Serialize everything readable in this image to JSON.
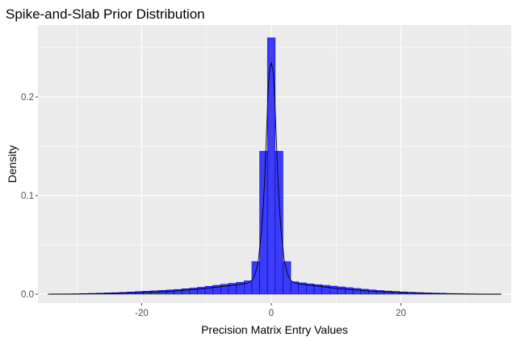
{
  "chart_data": {
    "type": "bar",
    "subtype": "histogram-with-density-line",
    "title": "Spike-and-Slab Prior Distribution",
    "xlabel": "Precision Matrix Entry Values",
    "ylabel": "Density",
    "xlim": [
      -36,
      37
    ],
    "ylim": [
      -0.009,
      0.273
    ],
    "x_ticks": [
      -20,
      0,
      20
    ],
    "x_tick_labels": [
      "-20",
      "0",
      "20"
    ],
    "y_ticks": [
      0.0,
      0.1,
      0.2
    ],
    "y_tick_labels": [
      "0.0",
      "0.1",
      "0.2"
    ],
    "grid": true,
    "legend": "none",
    "bin_width": 1.2,
    "bins": [
      {
        "x": -33.6,
        "y": 0.0003
      },
      {
        "x": -32.4,
        "y": 0.0003
      },
      {
        "x": -31.2,
        "y": 0.0003
      },
      {
        "x": -30.0,
        "y": 0.0004
      },
      {
        "x": -28.8,
        "y": 0.0006
      },
      {
        "x": -27.6,
        "y": 0.0008
      },
      {
        "x": -26.4,
        "y": 0.001
      },
      {
        "x": -25.2,
        "y": 0.0013
      },
      {
        "x": -24.0,
        "y": 0.0015
      },
      {
        "x": -22.8,
        "y": 0.0018
      },
      {
        "x": -21.6,
        "y": 0.0022
      },
      {
        "x": -20.4,
        "y": 0.0026
      },
      {
        "x": -19.2,
        "y": 0.003
      },
      {
        "x": -18.0,
        "y": 0.0034
      },
      {
        "x": -16.8,
        "y": 0.0038
      },
      {
        "x": -15.6,
        "y": 0.0043
      },
      {
        "x": -14.4,
        "y": 0.0048
      },
      {
        "x": -13.2,
        "y": 0.0055
      },
      {
        "x": -12.0,
        "y": 0.0062
      },
      {
        "x": -10.8,
        "y": 0.007
      },
      {
        "x": -9.6,
        "y": 0.008
      },
      {
        "x": -8.4,
        "y": 0.009
      },
      {
        "x": -7.2,
        "y": 0.01
      },
      {
        "x": -6.0,
        "y": 0.011
      },
      {
        "x": -4.8,
        "y": 0.012
      },
      {
        "x": -3.6,
        "y": 0.0135
      },
      {
        "x": -2.4,
        "y": 0.033
      },
      {
        "x": -1.2,
        "y": 0.145
      },
      {
        "x": 0.0,
        "y": 0.26
      },
      {
        "x": 1.2,
        "y": 0.145
      },
      {
        "x": 2.4,
        "y": 0.033
      },
      {
        "x": 3.6,
        "y": 0.0125
      },
      {
        "x": 4.8,
        "y": 0.0115
      },
      {
        "x": 6.0,
        "y": 0.0105
      },
      {
        "x": 7.2,
        "y": 0.0097
      },
      {
        "x": 8.4,
        "y": 0.009
      },
      {
        "x": 9.6,
        "y": 0.0082
      },
      {
        "x": 10.8,
        "y": 0.0074
      },
      {
        "x": 12.0,
        "y": 0.0066
      },
      {
        "x": 13.2,
        "y": 0.0058
      },
      {
        "x": 14.4,
        "y": 0.005
      },
      {
        "x": 15.6,
        "y": 0.0043
      },
      {
        "x": 16.8,
        "y": 0.0037
      },
      {
        "x": 18.0,
        "y": 0.0032
      },
      {
        "x": 19.2,
        "y": 0.0027
      },
      {
        "x": 20.4,
        "y": 0.0023
      },
      {
        "x": 21.6,
        "y": 0.0019
      },
      {
        "x": 22.8,
        "y": 0.0016
      },
      {
        "x": 24.0,
        "y": 0.0013
      },
      {
        "x": 25.2,
        "y": 0.0011
      },
      {
        "x": 26.4,
        "y": 0.0009
      },
      {
        "x": 27.6,
        "y": 0.0007
      },
      {
        "x": 28.8,
        "y": 0.0005
      },
      {
        "x": 30.0,
        "y": 0.0004
      },
      {
        "x": 31.2,
        "y": 0.0003
      },
      {
        "x": 32.4,
        "y": 0.0002
      },
      {
        "x": 33.6,
        "y": 0.0002
      },
      {
        "x": 34.8,
        "y": 0.0002
      }
    ],
    "density_line": {
      "x": [
        -34.5,
        -30,
        -25,
        -20,
        -15,
        -10,
        -8,
        -6,
        -5,
        -4,
        -3.5,
        -3,
        -2.5,
        -2,
        -1.5,
        -1.2,
        -1,
        -0.7,
        -0.5,
        -0.3,
        0,
        0.3,
        0.5,
        0.7,
        1,
        1.2,
        1.5,
        2,
        2.5,
        3,
        3.5,
        4,
        5,
        6,
        8,
        10,
        15,
        20,
        25,
        30,
        35.5
      ],
      "y": [
        0.0,
        0.0002,
        0.0007,
        0.0016,
        0.0032,
        0.0058,
        0.0075,
        0.009,
        0.0098,
        0.0108,
        0.0118,
        0.014,
        0.02,
        0.034,
        0.065,
        0.093,
        0.12,
        0.17,
        0.205,
        0.225,
        0.235,
        0.225,
        0.205,
        0.17,
        0.12,
        0.093,
        0.065,
        0.034,
        0.02,
        0.014,
        0.0118,
        0.0108,
        0.0098,
        0.009,
        0.0075,
        0.0058,
        0.0032,
        0.0016,
        0.0007,
        0.0002,
        0.0
      ]
    },
    "colors": {
      "bar_fill": "#0000ff",
      "bar_outline": "#000080",
      "density_line": "#000000",
      "panel_background": "#ebebeb",
      "grid_major": "#ffffff"
    }
  }
}
